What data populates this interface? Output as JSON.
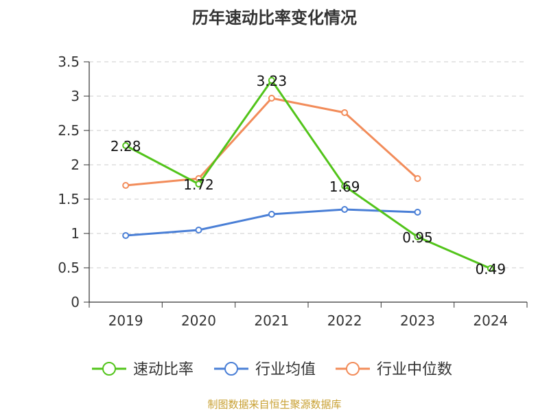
{
  "chart_data": {
    "type": "line",
    "title": "历年速动比率变化情况",
    "categories": [
      "2019",
      "2020",
      "2021",
      "2022",
      "2023",
      "2024"
    ],
    "ylim": [
      0,
      3.5
    ],
    "yticks": [
      "0",
      "0.5",
      "1",
      "1.5",
      "2",
      "2.5",
      "3",
      "3.5"
    ],
    "grid": true,
    "legend_position": "bottom",
    "series": [
      {
        "name": "速动比率",
        "color": "#52c41a",
        "values": [
          2.28,
          1.72,
          3.23,
          1.69,
          0.95,
          0.49
        ],
        "labels": [
          "2.28",
          "1.72",
          "3.23",
          "1.69",
          "0.95",
          "0.49"
        ]
      },
      {
        "name": "行业均值",
        "color": "#4a7fd6",
        "values": [
          0.97,
          1.05,
          1.28,
          1.35,
          1.31,
          null
        ]
      },
      {
        "name": "行业中位数",
        "color": "#f28c5a",
        "values": [
          1.7,
          1.8,
          2.97,
          2.76,
          1.8,
          null
        ]
      }
    ]
  },
  "source_text": "制图数据来自恒生聚源数据库"
}
